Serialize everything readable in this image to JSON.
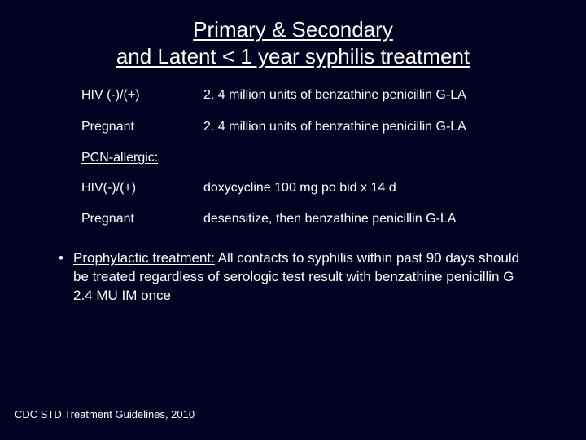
{
  "colors": {
    "background": "#000020",
    "text": "#ffffff"
  },
  "typography": {
    "title_fontsize_pt": 20,
    "body_fontsize_pt": 12,
    "bullet_fontsize_pt": 13,
    "footer_fontsize_pt": 10,
    "font_family": "Arial"
  },
  "title": {
    "line1": "Primary & Secondary",
    "line2": "and Latent < 1 year syphilis treatment"
  },
  "rows": [
    {
      "label": "HIV (-)/(+)",
      "value": "2. 4 million units of benzathine penicillin G-LA"
    },
    {
      "label": "Pregnant",
      "value": "2. 4 million units of benzathine penicillin G-LA"
    }
  ],
  "subhead": "PCN-allergic:",
  "rows2": [
    {
      "label": "HIV(-)/(+)",
      "value": "doxycycline 100 mg po bid x 14 d"
    },
    {
      "label": "Pregnant",
      "value": "desensitize, then benzathine penicillin G-LA"
    }
  ],
  "bullet": {
    "lead": "Prophylactic treatment:",
    "rest": " All contacts to syphilis within past 90 days should be treated regardless of serologic test result with benzathine penicillin G 2.4 MU IM once"
  },
  "footer": "CDC STD Treatment Guidelines, 2010"
}
